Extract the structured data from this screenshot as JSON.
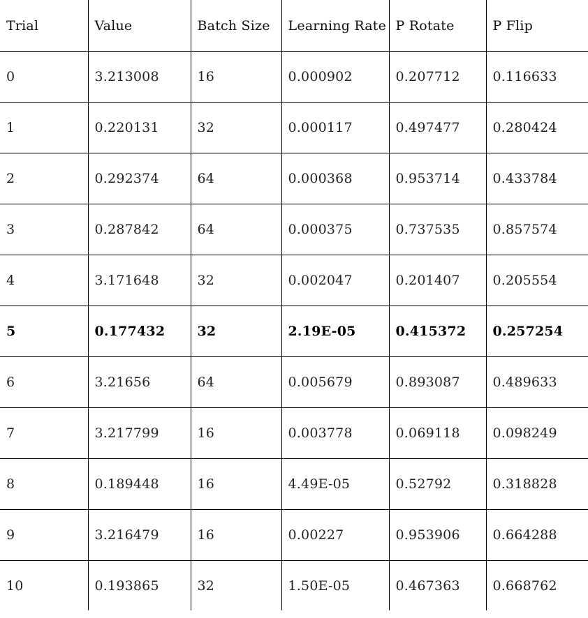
{
  "table": {
    "headers": [
      "Trial",
      "Value",
      "Batch Size",
      "Learning Rate",
      "P Rotate",
      "P Flip"
    ],
    "highlight_row": 5,
    "rows": [
      [
        "0",
        "3.213008",
        "16",
        "0.000902",
        "0.207712",
        "0.116633"
      ],
      [
        "1",
        "0.220131",
        "32",
        "0.000117",
        "0.497477",
        "0.280424"
      ],
      [
        "2",
        "0.292374",
        "64",
        "0.000368",
        "0.953714",
        "0.433784"
      ],
      [
        "3",
        "0.287842",
        "64",
        "0.000375",
        "0.737535",
        "0.857574"
      ],
      [
        "4",
        "3.171648",
        "32",
        "0.002047",
        "0.201407",
        "0.205554"
      ],
      [
        "5",
        "0.177432",
        "32",
        "2.19E-05",
        "0.415372",
        "0.257254"
      ],
      [
        "6",
        "3.21656",
        "64",
        "0.005679",
        "0.893087",
        "0.489633"
      ],
      [
        "7",
        "3.217799",
        "16",
        "0.003778",
        "0.069118",
        "0.098249"
      ],
      [
        "8",
        "0.189448",
        "16",
        "4.49E-05",
        "0.52792",
        "0.318828"
      ],
      [
        "9",
        "3.216479",
        "16",
        "0.00227",
        "0.953906",
        "0.664288"
      ],
      [
        "10",
        "0.193865",
        "32",
        "1.50E-05",
        "0.467363",
        "0.668762"
      ]
    ]
  }
}
